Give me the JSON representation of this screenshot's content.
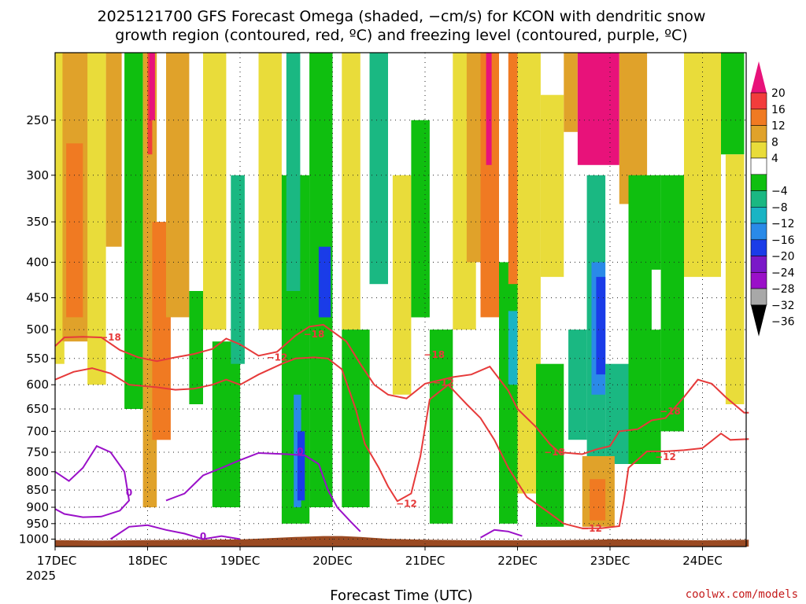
{
  "chart_data": {
    "type": "heatmap",
    "title_line1": "2025121700 GFS Forecast Omega (shaded, −cm/s) for KCON with dendritic snow",
    "title_line2": "growth region (contoured, red, ºC) and freezing level (contoured, purple, ºC)",
    "xlabel": "Forecast Time (UTC)",
    "ylabel": "",
    "credit": "coolwx.com/models",
    "x_ticks": [
      "17DEC",
      "18DEC",
      "19DEC",
      "20DEC",
      "21DEC",
      "22DEC",
      "23DEC",
      "24DEC"
    ],
    "x_sublabel": "2025",
    "y_ticks": [
      250,
      300,
      350,
      400,
      450,
      500,
      550,
      600,
      650,
      700,
      750,
      800,
      850,
      900,
      950,
      1000
    ],
    "x_range_days": [
      0,
      7.5
    ],
    "y_range_hpa": [
      200,
      1025
    ],
    "colorbar": {
      "ticks": [
        "20",
        "16",
        "12",
        "8",
        "4",
        "−4",
        "−8",
        "−12",
        "−16",
        "−20",
        "−24",
        "−28",
        "−32",
        "−36"
      ],
      "colors": [
        "#e8127a",
        "#f23c3c",
        "#f07a22",
        "#e0a22a",
        "#e9dc3a",
        "#ffffff",
        "#0fbf0f",
        "#1ab882",
        "#1ab4c4",
        "#2a8ae8",
        "#1a3ce8",
        "#7a18c8",
        "#9a10c8",
        "#a8a8a8",
        "#000000"
      ]
    },
    "contours": {
      "dgz": {
        "color": "#e63a3a",
        "labels": [
          "−18",
          "−18",
          "−12",
          "−18",
          "−12",
          "−12",
          "−18",
          "−12",
          "−18",
          "−12"
        ]
      },
      "freezing": {
        "color": "#9a10c8",
        "labels": [
          "0",
          "0",
          "0"
        ]
      }
    },
    "shading": [
      {
        "t0": 0.0,
        "t1": 0.1,
        "p0": 200,
        "p1": 560,
        "v": 6
      },
      {
        "t0": 0.08,
        "t1": 0.4,
        "p0": 200,
        "p1": 520,
        "v": 10
      },
      {
        "t0": 0.12,
        "t1": 0.3,
        "p0": 270,
        "p1": 480,
        "v": 14
      },
      {
        "t0": 0.35,
        "t1": 0.55,
        "p0": 200,
        "p1": 600,
        "v": 6
      },
      {
        "t0": 0.55,
        "t1": 0.72,
        "p0": 200,
        "p1": 380,
        "v": 9
      },
      {
        "t0": 0.75,
        "t1": 0.95,
        "p0": 200,
        "p1": 650,
        "v": -6
      },
      {
        "t0": 0.95,
        "t1": 1.1,
        "p0": 200,
        "p1": 900,
        "v": 8
      },
      {
        "t0": 1.0,
        "t1": 1.05,
        "p0": 200,
        "p1": 280,
        "v": 18
      },
      {
        "t0": 1.02,
        "t1": 1.08,
        "p0": 200,
        "p1": 250,
        "v": 22
      },
      {
        "t0": 1.1,
        "t1": 1.18,
        "p0": 380,
        "p1": 640,
        "v": 22
      },
      {
        "t0": 1.05,
        "t1": 1.25,
        "p0": 350,
        "p1": 720,
        "v": 14
      },
      {
        "t0": 1.2,
        "t1": 1.45,
        "p0": 200,
        "p1": 480,
        "v": 8
      },
      {
        "t0": 1.45,
        "t1": 1.6,
        "p0": 440,
        "p1": 640,
        "v": -6
      },
      {
        "t0": 1.6,
        "t1": 1.85,
        "p0": 200,
        "p1": 500,
        "v": 6
      },
      {
        "t0": 1.7,
        "t1": 2.0,
        "p0": 520,
        "p1": 900,
        "v": -6
      },
      {
        "t0": 1.9,
        "t1": 2.05,
        "p0": 300,
        "p1": 560,
        "v": -10
      },
      {
        "t0": 2.2,
        "t1": 2.45,
        "p0": 200,
        "p1": 500,
        "v": 6
      },
      {
        "t0": 2.45,
        "t1": 2.75,
        "p0": 300,
        "p1": 950,
        "v": -6
      },
      {
        "t0": 2.5,
        "t1": 2.65,
        "p0": 200,
        "p1": 440,
        "v": -10
      },
      {
        "t0": 2.58,
        "t1": 2.66,
        "p0": 620,
        "p1": 900,
        "v": -16
      },
      {
        "t0": 2.62,
        "t1": 2.7,
        "p0": 700,
        "p1": 880,
        "v": -22
      },
      {
        "t0": 2.75,
        "t1": 3.0,
        "p0": 200,
        "p1": 900,
        "v": -6
      },
      {
        "t0": 2.85,
        "t1": 2.98,
        "p0": 380,
        "p1": 480,
        "v": -22
      },
      {
        "t0": 3.1,
        "t1": 3.3,
        "p0": 200,
        "p1": 500,
        "v": 6
      },
      {
        "t0": 3.1,
        "t1": 3.4,
        "p0": 500,
        "p1": 900,
        "v": -6
      },
      {
        "t0": 3.4,
        "t1": 3.6,
        "p0": 200,
        "p1": 430,
        "v": -8
      },
      {
        "t0": 3.65,
        "t1": 3.85,
        "p0": 300,
        "p1": 620,
        "v": 6
      },
      {
        "t0": 3.85,
        "t1": 4.05,
        "p0": 250,
        "p1": 480,
        "v": -6
      },
      {
        "t0": 4.05,
        "t1": 4.3,
        "p0": 500,
        "p1": 950,
        "v": -6
      },
      {
        "t0": 4.3,
        "t1": 4.55,
        "p0": 200,
        "p1": 500,
        "v": 6
      },
      {
        "t0": 4.45,
        "t1": 4.6,
        "p0": 200,
        "p1": 400,
        "v": 10
      },
      {
        "t0": 4.6,
        "t1": 4.8,
        "p0": 200,
        "p1": 480,
        "v": 14
      },
      {
        "t0": 4.66,
        "t1": 4.72,
        "p0": 200,
        "p1": 290,
        "v": 22
      },
      {
        "t0": 4.8,
        "t1": 5.0,
        "p0": 400,
        "p1": 950,
        "v": -6
      },
      {
        "t0": 4.9,
        "t1": 5.0,
        "p0": 200,
        "p1": 430,
        "v": 12
      },
      {
        "t0": 4.9,
        "t1": 5.0,
        "p0": 470,
        "p1": 600,
        "v": -12
      },
      {
        "t0": 5.0,
        "t1": 5.25,
        "p0": 200,
        "p1": 860,
        "v": 5
      },
      {
        "t0": 5.25,
        "t1": 5.5,
        "p0": 230,
        "p1": 420,
        "v": 6
      },
      {
        "t0": 5.5,
        "t1": 5.65,
        "p0": 200,
        "p1": 260,
        "v": 8
      },
      {
        "t0": 5.65,
        "t1": 6.1,
        "p0": 200,
        "p1": 290,
        "v": 22
      },
      {
        "t0": 6.1,
        "t1": 6.4,
        "p0": 200,
        "p1": 330,
        "v": 10
      },
      {
        "t0": 5.55,
        "t1": 5.75,
        "p0": 500,
        "p1": 720,
        "v": -8
      },
      {
        "t0": 5.75,
        "t1": 5.95,
        "p0": 300,
        "p1": 760,
        "v": -10
      },
      {
        "t0": 5.8,
        "t1": 5.95,
        "p0": 400,
        "p1": 620,
        "v": -16
      },
      {
        "t0": 5.85,
        "t1": 5.95,
        "p0": 420,
        "p1": 580,
        "v": -22
      },
      {
        "t0": 5.95,
        "t1": 6.2,
        "p0": 560,
        "p1": 780,
        "v": -10
      },
      {
        "t0": 6.2,
        "t1": 6.55,
        "p0": 300,
        "p1": 780,
        "v": -6
      },
      {
        "t0": 6.45,
        "t1": 6.6,
        "p0": 410,
        "p1": 500,
        "v": 0
      },
      {
        "t0": 5.7,
        "t1": 6.05,
        "p0": 760,
        "p1": 960,
        "v": 8
      },
      {
        "t0": 5.78,
        "t1": 5.95,
        "p0": 820,
        "p1": 940,
        "v": 12
      },
      {
        "t0": 5.82,
        "t1": 5.92,
        "p0": 860,
        "p1": 920,
        "v": 14
      },
      {
        "t0": 5.2,
        "t1": 5.5,
        "p0": 560,
        "p1": 960,
        "v": -6
      },
      {
        "t0": 6.55,
        "t1": 6.8,
        "p0": 300,
        "p1": 700,
        "v": -6
      },
      {
        "t0": 6.8,
        "t1": 7.2,
        "p0": 200,
        "p1": 420,
        "v": 6
      },
      {
        "t0": 7.2,
        "t1": 7.45,
        "p0": 200,
        "p1": 280,
        "v": -6
      },
      {
        "t0": 7.25,
        "t1": 7.45,
        "p0": 280,
        "p1": 640,
        "v": 5
      }
    ]
  }
}
